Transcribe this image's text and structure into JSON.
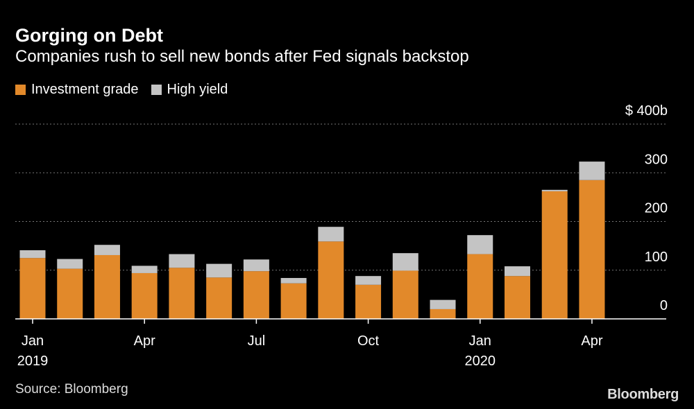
{
  "colors": {
    "ig": "#e2892a",
    "hy": "#c4c4c4",
    "grid": "#777777",
    "text": "#ffffff"
  },
  "footer": {
    "source": "Source: Bloomberg",
    "brand": "Bloomberg"
  },
  "chart_data": {
    "type": "bar",
    "stacked": true,
    "title": "Gorging on Debt",
    "subtitle": "Companies rush to sell new bonds after Fed signals backstop",
    "ylim": [
      0,
      400
    ],
    "yticks": [
      {
        "value": 0,
        "label": "0"
      },
      {
        "value": 100,
        "label": "100"
      },
      {
        "value": 200,
        "label": "200"
      },
      {
        "value": 300,
        "label": "300"
      },
      {
        "value": 400,
        "label": "$ 400b"
      }
    ],
    "categories": [
      "Jan 2019",
      "Feb 2019",
      "Mar 2019",
      "Apr 2019",
      "May 2019",
      "Jun 2019",
      "Jul 2019",
      "Aug 2019",
      "Sep 2019",
      "Oct 2019",
      "Nov 2019",
      "Dec 2019",
      "Jan 2020",
      "Feb 2020",
      "Mar 2020",
      "Apr 2020"
    ],
    "series": [
      {
        "name": "Investment grade",
        "values": [
          125,
          103,
          131,
          94,
          105,
          85,
          98,
          73,
          159,
          70,
          99,
          20,
          133,
          88,
          262,
          285
        ]
      },
      {
        "name": "High yield",
        "values": [
          16,
          20,
          21,
          15,
          28,
          28,
          24,
          11,
          30,
          18,
          36,
          19,
          39,
          20,
          3,
          38
        ]
      }
    ],
    "xticks": [
      {
        "index": 0,
        "label": "Jan",
        "year": "2019"
      },
      {
        "index": 3,
        "label": "Apr",
        "year": ""
      },
      {
        "index": 6,
        "label": "Jul",
        "year": ""
      },
      {
        "index": 9,
        "label": "Oct",
        "year": ""
      },
      {
        "index": 12,
        "label": "Jan",
        "year": "2020"
      },
      {
        "index": 15,
        "label": "Apr",
        "year": ""
      }
    ]
  }
}
